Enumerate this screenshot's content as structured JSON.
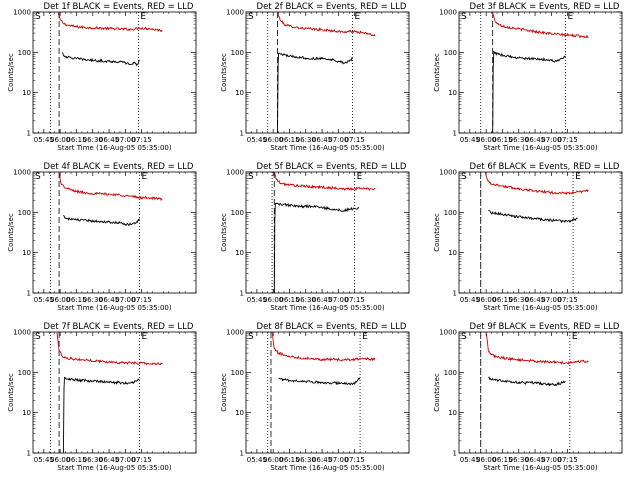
{
  "chart_data": [
    {
      "type": "line",
      "title": "Det 1f BLACK = Events, RED = LLD",
      "xlabel": "Start Time (16-Aug-05 05:35:00)",
      "ylabel": "Counts/sec",
      "yscale": "log",
      "ylim": [
        1,
        1000
      ],
      "xlim_min": [
        -40,
        110
      ],
      "xticks": [
        "05:45",
        "06:00",
        "06:15",
        "06:30",
        "06:45",
        "07:00",
        "07:15"
      ],
      "marker_left": "S",
      "marker_right": "E",
      "vlines_min": [
        -24,
        -16,
        57
      ],
      "series": [
        {
          "color": "#d00000",
          "x": [
            -17,
            -15,
            -12,
            -8,
            0,
            10,
            20,
            30,
            40,
            50,
            58,
            66,
            74,
            79
          ],
          "y": [
            950,
            650,
            520,
            470,
            430,
            410,
            400,
            390,
            380,
            370,
            400,
            390,
            360,
            350
          ]
        },
        {
          "color": "#000000",
          "x": [
            -13,
            -12,
            -8,
            0,
            10,
            20,
            30,
            40,
            45,
            50,
            53,
            56,
            58
          ],
          "y": [
            100,
            85,
            75,
            70,
            65,
            62,
            60,
            58,
            55,
            50,
            55,
            50,
            65
          ]
        }
      ]
    },
    {
      "type": "line",
      "title": "Det 2f BLACK = Events, RED = LLD",
      "xlabel": "Start Time (16-Aug-05 05:35:00)",
      "ylabel": "Counts/sec",
      "yscale": "log",
      "ylim": [
        1,
        1000
      ],
      "xlim_min": [
        -40,
        110
      ],
      "xticks": [
        "05:45",
        "06:00",
        "06:15",
        "06:30",
        "06:45",
        "07:00",
        "07:15"
      ],
      "marker_left": "S",
      "marker_right": "E",
      "vlines_min": [
        -20,
        -11,
        58
      ],
      "series": [
        {
          "color": "#d00000",
          "x": [
            -11,
            -8,
            -4,
            0,
            10,
            20,
            30,
            40,
            50,
            58,
            66,
            74,
            79
          ],
          "y": [
            950,
            600,
            480,
            450,
            400,
            380,
            360,
            340,
            320,
            330,
            310,
            280,
            260
          ]
        },
        {
          "color": "#000000",
          "x": [
            -11,
            -10.5,
            -10,
            -8,
            0,
            10,
            20,
            30,
            40,
            45,
            50,
            55,
            58
          ],
          "y": [
            1,
            50,
            95,
            90,
            80,
            75,
            70,
            70,
            65,
            60,
            55,
            60,
            70
          ]
        }
      ]
    },
    {
      "type": "line",
      "title": "Det 3f BLACK = Events, RED = LLD",
      "xlabel": "Start Time (16-Aug-05 05:35:00)",
      "ylabel": "Counts/sec",
      "yscale": "log",
      "ylim": [
        1,
        1000
      ],
      "xlim_min": [
        -40,
        110
      ],
      "xticks": [
        "05:45",
        "06:00",
        "06:15",
        "06:30",
        "06:45",
        "07:00",
        "07:15"
      ],
      "marker_left": "S",
      "marker_right": "E",
      "vlines_min": [
        -20,
        -9,
        58
      ],
      "series": [
        {
          "color": "#d00000",
          "x": [
            -9,
            -7,
            -3,
            0,
            10,
            20,
            30,
            40,
            50,
            58,
            66,
            74,
            79
          ],
          "y": [
            950,
            600,
            480,
            450,
            400,
            360,
            330,
            300,
            280,
            270,
            260,
            250,
            240
          ]
        },
        {
          "color": "#000000",
          "x": [
            -9,
            -8.5,
            -8,
            -7,
            0,
            10,
            20,
            30,
            40,
            50,
            55,
            58
          ],
          "y": [
            1,
            40,
            105,
            95,
            85,
            75,
            70,
            70,
            65,
            60,
            70,
            80
          ]
        }
      ]
    },
    {
      "type": "line",
      "title": "Det 4f BLACK = Events, RED = LLD",
      "xlabel": "Start Time (16-Aug-05 05:35:00)",
      "ylabel": "Counts/sec",
      "yscale": "log",
      "ylim": [
        1,
        1000
      ],
      "xlim_min": [
        -40,
        110
      ],
      "xticks": [
        "05:45",
        "06:00",
        "06:15",
        "06:30",
        "06:45",
        "07:00",
        "07:15"
      ],
      "marker_left": "S",
      "marker_right": "E",
      "vlines_min": [
        -24,
        -16,
        58
      ],
      "series": [
        {
          "color": "#d00000",
          "x": [
            -16,
            -14,
            -10,
            -5,
            0,
            10,
            20,
            30,
            40,
            50,
            58,
            66,
            74,
            79
          ],
          "y": [
            1000,
            500,
            400,
            360,
            330,
            300,
            290,
            280,
            270,
            250,
            230,
            230,
            220,
            210
          ]
        },
        {
          "color": "#000000",
          "x": [
            -12,
            -11,
            -8,
            0,
            10,
            20,
            30,
            40,
            45,
            50,
            55,
            58
          ],
          "y": [
            85,
            75,
            70,
            65,
            62,
            60,
            58,
            55,
            50,
            50,
            55,
            70
          ]
        }
      ]
    },
    {
      "type": "line",
      "title": "Det 5f BLACK = Events, RED = LLD",
      "xlabel": "Start Time (16-Aug-05 05:35:00)",
      "ylabel": "Counts/sec",
      "yscale": "log",
      "ylim": [
        1,
        1000
      ],
      "xlim_min": [
        -40,
        110
      ],
      "xticks": [
        "05:45",
        "06:00",
        "06:15",
        "06:30",
        "06:45",
        "07:00",
        "07:15"
      ],
      "marker_left": "S",
      "marker_right": "E",
      "vlines_min": [
        -16,
        -14,
        60
      ],
      "series": [
        {
          "color": "#d00000",
          "x": [
            -14,
            -12,
            -8,
            0,
            10,
            20,
            30,
            40,
            50,
            60,
            66,
            74,
            79
          ],
          "y": [
            1000,
            650,
            520,
            480,
            450,
            430,
            420,
            400,
            380,
            380,
            400,
            380,
            390
          ]
        },
        {
          "color": "#000000",
          "x": [
            -14,
            -13.5,
            -13,
            -10,
            0,
            10,
            20,
            30,
            40,
            50,
            55,
            60,
            64
          ],
          "y": [
            1,
            60,
            165,
            160,
            150,
            140,
            140,
            130,
            120,
            110,
            120,
            125,
            130
          ]
        }
      ]
    },
    {
      "type": "line",
      "title": "Det 6f BLACK = Events, RED = LLD",
      "xlabel": "Start Time (16-Aug-05 05:35:00)",
      "ylabel": "Counts/sec",
      "yscale": "log",
      "ylim": [
        1,
        1000
      ],
      "xlim_min": [
        -40,
        110
      ],
      "xticks": [
        "05:45",
        "06:00",
        "06:15",
        "06:30",
        "06:45",
        "07:00",
        "07:15"
      ],
      "marker_left": "S",
      "marker_right": "E",
      "vlines_min": [
        -20,
        -20,
        65
      ],
      "series": [
        {
          "color": "#d00000",
          "x": [
            -16,
            -14,
            -10,
            0,
            10,
            20,
            30,
            40,
            50,
            60,
            66,
            74,
            79
          ],
          "y": [
            1000,
            650,
            500,
            450,
            400,
            370,
            340,
            320,
            300,
            300,
            310,
            330,
            360
          ]
        },
        {
          "color": "#000000",
          "x": [
            -13,
            -11,
            -8,
            0,
            10,
            20,
            30,
            40,
            50,
            60,
            66,
            69
          ],
          "y": [
            110,
            100,
            95,
            90,
            80,
            75,
            70,
            65,
            62,
            60,
            65,
            70
          ]
        }
      ]
    },
    {
      "type": "line",
      "title": "Det 7f BLACK = Events, RED = LLD",
      "xlabel": "Start Time (16-Aug-05 05:35:00)",
      "ylabel": "Counts/sec",
      "yscale": "log",
      "ylim": [
        1,
        1000
      ],
      "xlim_min": [
        -40,
        110
      ],
      "xticks": [
        "05:45",
        "06:00",
        "06:15",
        "06:30",
        "06:45",
        "07:00",
        "07:15"
      ],
      "marker_left": "S",
      "marker_right": "E",
      "vlines_min": [
        -24,
        -16,
        58
      ],
      "series": [
        {
          "color": "#d00000",
          "x": [
            -18,
            -16,
            -13,
            -10,
            -5,
            0,
            10,
            20,
            30,
            40,
            50,
            58,
            66,
            74,
            79
          ],
          "y": [
            1000,
            350,
            250,
            230,
            220,
            210,
            200,
            190,
            180,
            175,
            170,
            170,
            165,
            160,
            170
          ]
        },
        {
          "color": "#000000",
          "x": [
            -12,
            -11.5,
            -11,
            -10,
            -5,
            0,
            10,
            20,
            30,
            40,
            50,
            55,
            58
          ],
          "y": [
            1,
            40,
            75,
            70,
            68,
            65,
            62,
            60,
            58,
            55,
            55,
            60,
            65
          ]
        }
      ]
    },
    {
      "type": "line",
      "title": "Det 8f BLACK = Events, RED = LLD",
      "xlabel": "Start Time (16-Aug-05 05:35:00)",
      "ylabel": "Counts/sec",
      "yscale": "log",
      "ylim": [
        1,
        1000
      ],
      "xlim_min": [
        -40,
        110
      ],
      "xticks": [
        "05:45",
        "06:00",
        "06:15",
        "06:30",
        "06:45",
        "07:00",
        "07:15"
      ],
      "marker_left": "S",
      "marker_right": "E",
      "vlines_min": [
        -20,
        -17,
        65
      ],
      "series": [
        {
          "color": "#d00000",
          "x": [
            -16,
            -14,
            -10,
            -5,
            0,
            10,
            20,
            30,
            40,
            50,
            60,
            66,
            74,
            79
          ],
          "y": [
            1000,
            380,
            300,
            270,
            250,
            230,
            220,
            210,
            210,
            200,
            210,
            220,
            210,
            220
          ]
        },
        {
          "color": "#000000",
          "x": [
            -10,
            -8,
            -5,
            0,
            10,
            20,
            30,
            40,
            50,
            58,
            62,
            65
          ],
          "y": [
            70,
            68,
            65,
            62,
            60,
            58,
            56,
            55,
            52,
            50,
            60,
            75
          ]
        }
      ]
    },
    {
      "type": "line",
      "title": "Det 9f BLACK = Events, RED = LLD",
      "xlabel": "Start Time (16-Aug-05 05:35:00)",
      "ylabel": "Counts/sec",
      "yscale": "log",
      "ylim": [
        1,
        1000
      ],
      "xlim_min": [
        -40,
        110
      ],
      "xticks": [
        "05:45",
        "06:00",
        "06:15",
        "06:30",
        "06:45",
        "07:00",
        "07:15"
      ],
      "marker_left": "S",
      "marker_right": "E",
      "vlines_min": [
        -20,
        -20,
        62
      ],
      "series": [
        {
          "color": "#d00000",
          "x": [
            -15,
            -13,
            -10,
            -5,
            0,
            10,
            20,
            30,
            40,
            50,
            58,
            66,
            74,
            79
          ],
          "y": [
            1000,
            350,
            270,
            240,
            230,
            210,
            200,
            190,
            180,
            180,
            170,
            180,
            190,
            180
          ]
        },
        {
          "color": "#000000",
          "x": [
            -13,
            -11,
            -8,
            0,
            10,
            20,
            30,
            40,
            50,
            55,
            58
          ],
          "y": [
            75,
            70,
            65,
            62,
            58,
            55,
            55,
            50,
            50,
            55,
            60
          ]
        }
      ]
    }
  ]
}
